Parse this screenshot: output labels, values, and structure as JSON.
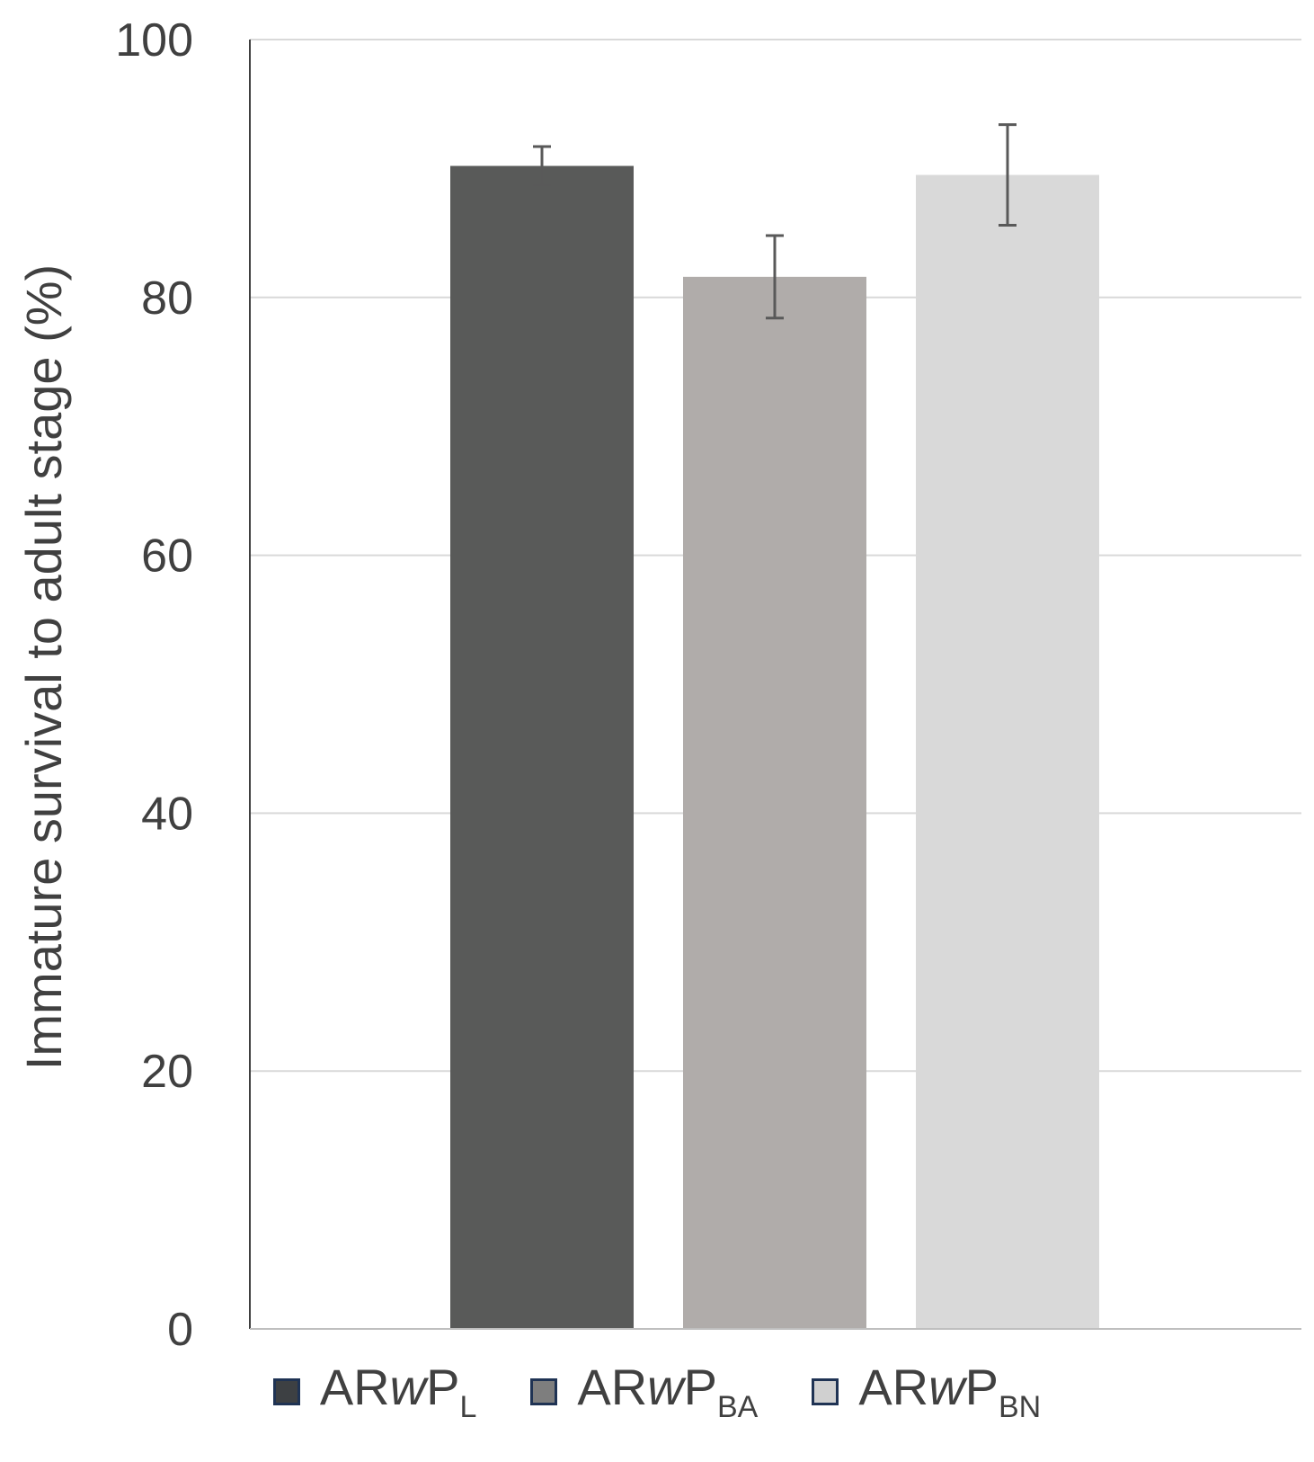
{
  "chart_data": {
    "type": "bar",
    "title": "",
    "xlabel": "",
    "ylabel": "Immature survival to adult stage (%)",
    "ylim": [
      0,
      100
    ],
    "yticks": [
      "0",
      "20",
      "40",
      "60",
      "80",
      "100"
    ],
    "grid": "horizontal",
    "legend_position": "bottom",
    "categories": [
      "ARwPL",
      "ARwPBA",
      "ARwPBN"
    ],
    "values": [
      90.2,
      81.6,
      89.5
    ],
    "error": [
      1.5,
      3.2,
      3.9
    ],
    "colors": [
      "#595a59",
      "#b0acaa",
      "#d9d9d9"
    ]
  },
  "legend": [
    {
      "prefix": "AR",
      "italic": "w",
      "main": "P",
      "sub": "L",
      "color": "#3d4043"
    },
    {
      "prefix": "AR",
      "italic": "w",
      "main": "P",
      "sub": "BA",
      "color": "#7e7e7e"
    },
    {
      "prefix": "AR",
      "italic": "w",
      "main": "P",
      "sub": "BN",
      "color": "#d0d0d0"
    }
  ]
}
